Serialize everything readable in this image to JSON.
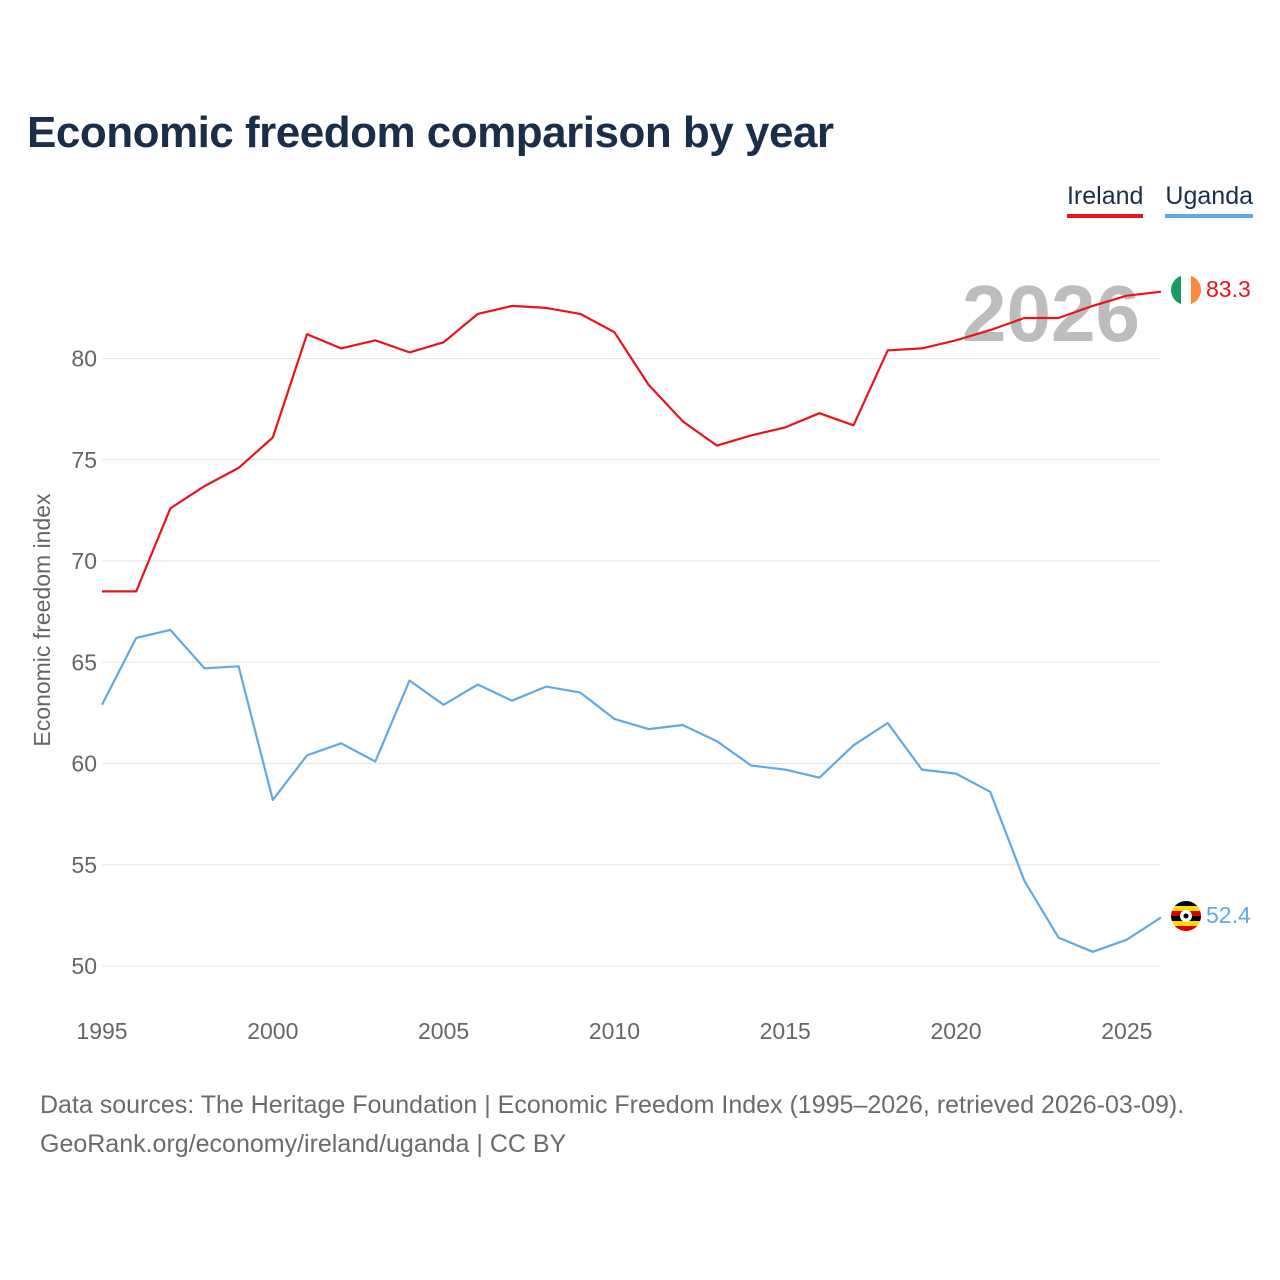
{
  "title": "Economic freedom comparison by year",
  "legend": {
    "ireland": "Ireland",
    "uganda": "Uganda"
  },
  "year_label": "2026",
  "footer": {
    "line1": "Data sources: The Heritage Foundation | Economic Freedom Index (1995–2026, retrieved 2026-03-09).",
    "line2": "GeoRank.org/economy/ireland/uganda | CC BY"
  },
  "chart_data": {
    "type": "line",
    "ylabel": "Economic freedom index",
    "xlabel": "",
    "xlim": [
      1995,
      2026
    ],
    "ylim": [
      48,
      85
    ],
    "xticks": [
      1995,
      2000,
      2005,
      2010,
      2015,
      2020,
      2025
    ],
    "yticks": [
      50,
      55,
      60,
      65,
      70,
      75,
      80
    ],
    "grid": true,
    "x": [
      1995,
      1996,
      1997,
      1998,
      1999,
      2000,
      2001,
      2002,
      2003,
      2004,
      2005,
      2006,
      2007,
      2008,
      2009,
      2010,
      2011,
      2012,
      2013,
      2014,
      2015,
      2016,
      2017,
      2018,
      2019,
      2020,
      2021,
      2022,
      2023,
      2024,
      2025,
      2026
    ],
    "series": [
      {
        "name": "Ireland",
        "color": "#e8141c",
        "end_label": "83.3",
        "values": [
          68.5,
          68.5,
          72.6,
          73.7,
          74.6,
          76.1,
          81.2,
          80.5,
          80.9,
          80.3,
          80.8,
          82.2,
          82.6,
          82.5,
          82.2,
          81.3,
          78.7,
          76.9,
          75.7,
          76.2,
          76.6,
          77.3,
          76.7,
          80.4,
          80.5,
          80.9,
          81.4,
          82.0,
          82.0,
          82.6,
          83.1,
          83.3
        ]
      },
      {
        "name": "Uganda",
        "color": "#62a9e4",
        "end_label": "52.4",
        "values": [
          62.9,
          66.2,
          66.6,
          64.7,
          64.8,
          58.2,
          60.4,
          61.0,
          60.1,
          64.1,
          62.9,
          63.9,
          63.1,
          63.8,
          63.5,
          62.2,
          61.7,
          61.9,
          61.1,
          59.9,
          59.7,
          59.3,
          60.9,
          62.0,
          59.7,
          59.5,
          58.6,
          54.2,
          51.4,
          50.7,
          51.3,
          52.4
        ]
      }
    ]
  }
}
